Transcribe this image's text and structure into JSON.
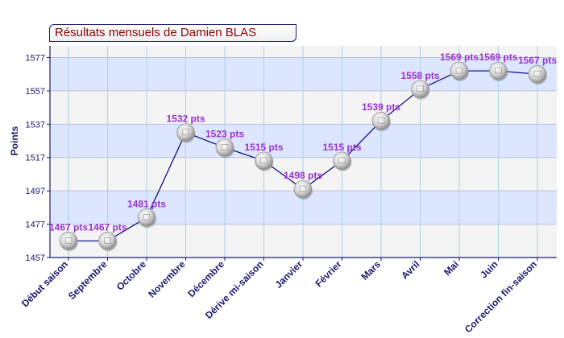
{
  "chart_data": {
    "type": "line",
    "title": "Résultats mensuels de Damien BLAS",
    "xlabel": "",
    "ylabel": "Points",
    "categories": [
      "Début saison",
      "Septembre",
      "Octobre",
      "Novembre",
      "Décembre",
      "Dérive mi-saison",
      "Janvier",
      "Février",
      "Mars",
      "Avril",
      "Mai",
      "Juin",
      "Correction fin-saison"
    ],
    "values": [
      1467,
      1467,
      1481,
      1532,
      1523,
      1515,
      1498,
      1515,
      1539,
      1558,
      1569,
      1569,
      1567
    ],
    "data_labels": [
      "1467 pts",
      "1467 pts",
      "1481 pts",
      "1532 pts",
      "1523 pts",
      "1515 pts",
      "1498 pts",
      "1515 pts",
      "1539 pts",
      "1558 pts",
      "1569 pts",
      "1569 pts",
      "1567 pts"
    ],
    "yticks": [
      1457,
      1477,
      1497,
      1517,
      1537,
      1557,
      1577
    ],
    "ylim": [
      1457,
      1584
    ],
    "grid": true,
    "colors": {
      "line": "#000080",
      "label": "#9933cc",
      "band_blue": "#dde6ff",
      "band_gray": "#f4f4f4",
      "axis_text": "#1a1a6e",
      "title": "#8b0000"
    }
  }
}
